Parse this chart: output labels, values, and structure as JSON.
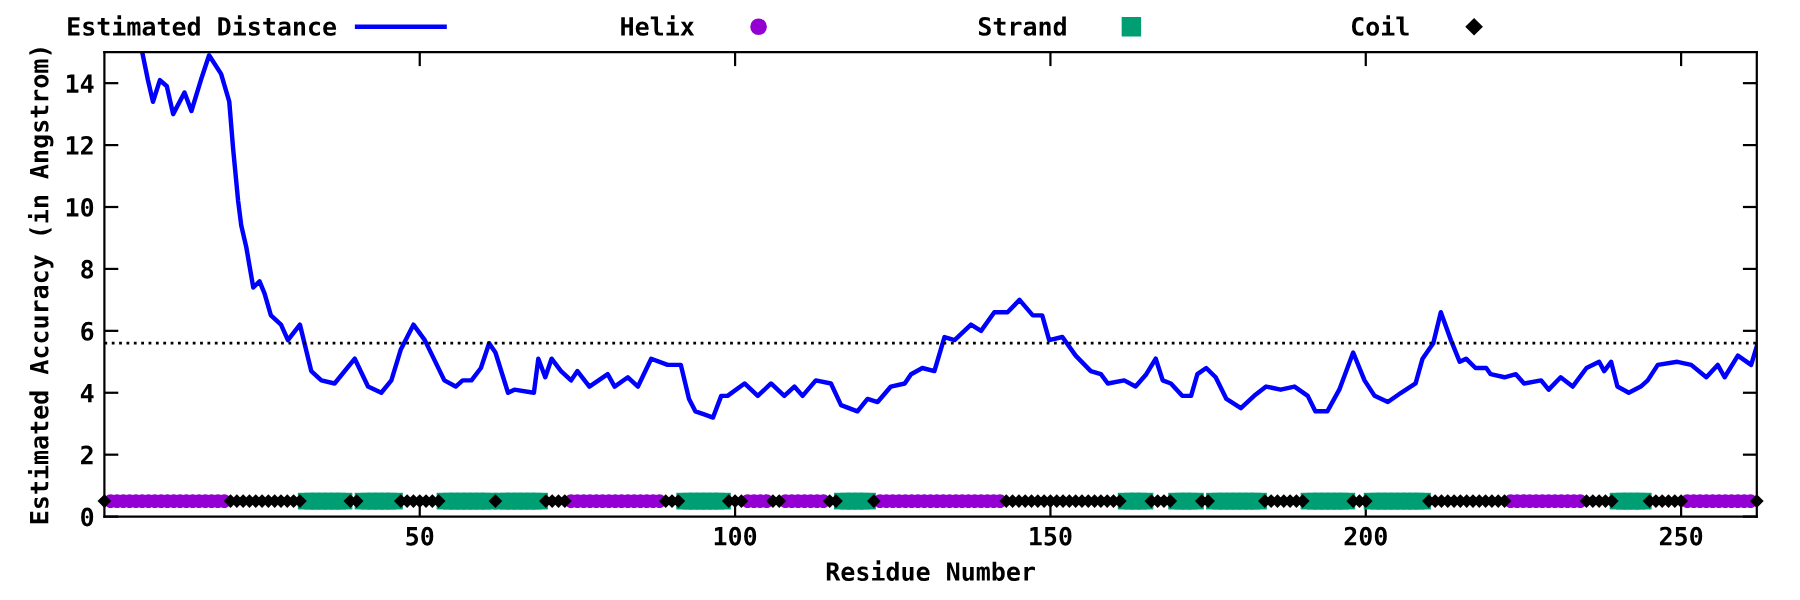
{
  "chart_data": {
    "type": "line",
    "xlabel": "Residue Number",
    "ylabel": "Estimated Accuracy (in Angstrom)",
    "xlim": [
      0,
      262
    ],
    "xticks": [
      50,
      100,
      150,
      200,
      250
    ],
    "ylim": [
      0,
      15
    ],
    "yticks": [
      0,
      2,
      4,
      6,
      8,
      10,
      12,
      14
    ],
    "grid": false,
    "legend": "top",
    "ref_lines": [
      {
        "axis": "y",
        "value": 5.6,
        "color": "#000000",
        "line_style": "dotted"
      }
    ],
    "series": [
      {
        "name": "Estimated Distance",
        "color": "#0000ff",
        "marker": "none",
        "line_style": "solid",
        "x": [
          6,
          6.9,
          7.7,
          8.8,
          9.9,
          10.9,
          12.7,
          13.8,
          15.3,
          16.6,
          18.5,
          19.8,
          20.4,
          21.2,
          21.7,
          22.5,
          23.6,
          24.6,
          25.4,
          26.4,
          28,
          29.1,
          31,
          32.8,
          34.4,
          36.5,
          39.7,
          41.8,
          43.9,
          45.5,
          47,
          49,
          50.8,
          53.9,
          55.7,
          56.8,
          58.2,
          59.7,
          61,
          62,
          64,
          65,
          68.1,
          68.8,
          69.9,
          70.9,
          72.4,
          74,
          75,
          76.9,
          79.8,
          80.9,
          83,
          84.6,
          86.7,
          89.3,
          91.4,
          92.7,
          93.7,
          95.1,
          96.5,
          97.8,
          98.8,
          101.5,
          103.6,
          105.7,
          107.8,
          109.4,
          110.7,
          112.8,
          115.2,
          116.8,
          119.4,
          121,
          122.6,
          124.7,
          126.9,
          127.9,
          129.7,
          131.6,
          133.2,
          134.8,
          137.4,
          139,
          141.1,
          143.2,
          145.1,
          147.2,
          148.7,
          149.8,
          151.9,
          154,
          156.4,
          158,
          159.1,
          161.7,
          163.5,
          165.2,
          166.7,
          167.8,
          169.1,
          170.9,
          172.3,
          173.3,
          174.7,
          176.2,
          177.9,
          180.2,
          182.3,
          184.2,
          186.5,
          188.7,
          190.8,
          192,
          193.9,
          195.8,
          198,
          199.8,
          201.4,
          203.5,
          205.6,
          207.9,
          209,
          210.7,
          211.9,
          213.5,
          214.9,
          215.9,
          217.4,
          219.1,
          219.8,
          222,
          223.8,
          225.1,
          227.8,
          229,
          230.9,
          232.8,
          235,
          237,
          237.8,
          238.9,
          239.9,
          241.7,
          243.6,
          244.7,
          246.3,
          249.4,
          251.6,
          254,
          255.8,
          256.9,
          259,
          261.1,
          262
        ],
        "values": [
          15,
          14.1,
          13.4,
          14.1,
          13.9,
          13.0,
          13.7,
          13.1,
          14.1,
          14.9,
          14.3,
          13.4,
          11.9,
          10.2,
          9.4,
          8.7,
          7.4,
          7.6,
          7.2,
          6.5,
          6.2,
          5.7,
          6.2,
          4.7,
          4.4,
          4.3,
          5.1,
          4.2,
          4.0,
          4.4,
          5.4,
          6.2,
          5.7,
          4.4,
          4.2,
          4.4,
          4.4,
          4.8,
          5.6,
          5.3,
          4.0,
          4.1,
          4.0,
          5.1,
          4.5,
          5.1,
          4.7,
          4.4,
          4.7,
          4.2,
          4.6,
          4.2,
          4.5,
          4.2,
          5.1,
          4.9,
          4.9,
          3.8,
          3.4,
          3.3,
          3.2,
          3.9,
          3.9,
          4.3,
          3.9,
          4.3,
          3.9,
          4.2,
          3.9,
          4.4,
          4.3,
          3.6,
          3.4,
          3.8,
          3.7,
          4.2,
          4.3,
          4.6,
          4.8,
          4.7,
          5.8,
          5.7,
          6.2,
          6.0,
          6.6,
          6.6,
          7.0,
          6.5,
          6.5,
          5.7,
          5.8,
          5.2,
          4.7,
          4.6,
          4.3,
          4.4,
          4.2,
          4.6,
          5.1,
          4.4,
          4.3,
          3.9,
          3.9,
          4.6,
          4.8,
          4.5,
          3.8,
          3.5,
          3.9,
          4.2,
          4.1,
          4.2,
          3.9,
          3.4,
          3.4,
          4.1,
          5.3,
          4.4,
          3.9,
          3.7,
          4.0,
          4.3,
          5.1,
          5.6,
          6.6,
          5.7,
          5.0,
          5.1,
          4.8,
          4.8,
          4.6,
          4.5,
          4.6,
          4.3,
          4.4,
          4.1,
          4.5,
          4.2,
          4.8,
          5.0,
          4.7,
          5.0,
          4.2,
          4.0,
          4.2,
          4.4,
          4.9,
          5.0,
          4.9,
          4.5,
          4.9,
          4.5,
          5.2,
          4.9,
          5.5
        ]
      },
      {
        "name": "Helix",
        "type": "scatter",
        "color": "#9400d3",
        "marker": "circle",
        "x": [
          1,
          2,
          3,
          4,
          5,
          6,
          7,
          8,
          9,
          10,
          11,
          12,
          13,
          14,
          15,
          16,
          17,
          18,
          19,
          74,
          75,
          76,
          77,
          78,
          79,
          80,
          81,
          82,
          83,
          84,
          85,
          86,
          87,
          88,
          102,
          103,
          104,
          105,
          108,
          109,
          110,
          111,
          112,
          113,
          114,
          123,
          124,
          125,
          126,
          127,
          128,
          129,
          130,
          131,
          132,
          133,
          134,
          135,
          136,
          137,
          138,
          139,
          140,
          141,
          142,
          223,
          224,
          225,
          226,
          227,
          228,
          229,
          230,
          231,
          232,
          233,
          234,
          251,
          252,
          253,
          254,
          255,
          256,
          257,
          258,
          259,
          260,
          261
        ],
        "values": [
          0.5,
          0.5,
          0.5,
          0.5,
          0.5,
          0.5,
          0.5,
          0.5,
          0.5,
          0.5,
          0.5,
          0.5,
          0.5,
          0.5,
          0.5,
          0.5,
          0.5,
          0.5,
          0.5,
          0.5,
          0.5,
          0.5,
          0.5,
          0.5,
          0.5,
          0.5,
          0.5,
          0.5,
          0.5,
          0.5,
          0.5,
          0.5,
          0.5,
          0.5,
          0.5,
          0.5,
          0.5,
          0.5,
          0.5,
          0.5,
          0.5,
          0.5,
          0.5,
          0.5,
          0.5,
          0.5,
          0.5,
          0.5,
          0.5,
          0.5,
          0.5,
          0.5,
          0.5,
          0.5,
          0.5,
          0.5,
          0.5,
          0.5,
          0.5,
          0.5,
          0.5,
          0.5,
          0.5,
          0.5,
          0.5,
          0.5,
          0.5,
          0.5,
          0.5,
          0.5,
          0.5,
          0.5,
          0.5,
          0.5,
          0.5,
          0.5,
          0.5,
          0.5,
          0.5,
          0.5,
          0.5,
          0.5,
          0.5,
          0.5,
          0.5,
          0.5,
          0.5,
          0.5
        ]
      },
      {
        "name": "Strand",
        "type": "scatter",
        "color": "#009e73",
        "marker": "square",
        "x": [
          32,
          33,
          34,
          35,
          36,
          37,
          38,
          41,
          42,
          43,
          44,
          45,
          46,
          54,
          55,
          56,
          57,
          58,
          59,
          60,
          61,
          63,
          64,
          65,
          66,
          67,
          68,
          69,
          92,
          93,
          94,
          95,
          96,
          97,
          98,
          117,
          118,
          119,
          120,
          121,
          162,
          163,
          164,
          165,
          170,
          171,
          172,
          173,
          176,
          177,
          178,
          179,
          180,
          181,
          182,
          183,
          191,
          192,
          193,
          194,
          195,
          196,
          197,
          201,
          202,
          203,
          204,
          205,
          206,
          207,
          208,
          209,
          240,
          241,
          242,
          243,
          244
        ],
        "values": [
          0.5,
          0.5,
          0.5,
          0.5,
          0.5,
          0.5,
          0.5,
          0.5,
          0.5,
          0.5,
          0.5,
          0.5,
          0.5,
          0.5,
          0.5,
          0.5,
          0.5,
          0.5,
          0.5,
          0.5,
          0.5,
          0.5,
          0.5,
          0.5,
          0.5,
          0.5,
          0.5,
          0.5,
          0.5,
          0.5,
          0.5,
          0.5,
          0.5,
          0.5,
          0.5,
          0.5,
          0.5,
          0.5,
          0.5,
          0.5,
          0.5,
          0.5,
          0.5,
          0.5,
          0.5,
          0.5,
          0.5,
          0.5,
          0.5,
          0.5,
          0.5,
          0.5,
          0.5,
          0.5,
          0.5,
          0.5,
          0.5,
          0.5,
          0.5,
          0.5,
          0.5,
          0.5,
          0.5,
          0.5,
          0.5,
          0.5,
          0.5,
          0.5,
          0.5,
          0.5,
          0.5,
          0.5,
          0.5,
          0.5,
          0.5,
          0.5,
          0.5
        ]
      },
      {
        "name": "Coil",
        "type": "scatter",
        "color": "#000000",
        "marker": "diamond",
        "x": [
          0,
          20,
          21,
          22,
          23,
          24,
          25,
          26,
          27,
          28,
          29,
          30,
          31,
          39,
          40,
          47,
          48,
          49,
          50,
          51,
          52,
          53,
          62,
          70,
          71,
          72,
          73,
          89,
          90,
          91,
          99,
          100,
          101,
          106,
          107,
          115,
          116,
          122,
          143,
          144,
          145,
          146,
          147,
          148,
          149,
          150,
          151,
          152,
          153,
          154,
          155,
          156,
          157,
          158,
          159,
          160,
          161,
          166,
          167,
          168,
          169,
          174,
          175,
          184,
          185,
          186,
          187,
          188,
          189,
          190,
          198,
          199,
          200,
          210,
          211,
          212,
          213,
          214,
          215,
          216,
          217,
          218,
          219,
          220,
          221,
          222,
          235,
          236,
          237,
          238,
          239,
          245,
          246,
          247,
          248,
          249,
          250,
          262
        ],
        "values": [
          0.5,
          0.5,
          0.5,
          0.5,
          0.5,
          0.5,
          0.5,
          0.5,
          0.5,
          0.5,
          0.5,
          0.5,
          0.5,
          0.5,
          0.5,
          0.5,
          0.5,
          0.5,
          0.5,
          0.5,
          0.5,
          0.5,
          0.5,
          0.5,
          0.5,
          0.5,
          0.5,
          0.5,
          0.5,
          0.5,
          0.5,
          0.5,
          0.5,
          0.5,
          0.5,
          0.5,
          0.5,
          0.5,
          0.5,
          0.5,
          0.5,
          0.5,
          0.5,
          0.5,
          0.5,
          0.5,
          0.5,
          0.5,
          0.5,
          0.5,
          0.5,
          0.5,
          0.5,
          0.5,
          0.5,
          0.5,
          0.5,
          0.5,
          0.5,
          0.5,
          0.5,
          0.5,
          0.5,
          0.5,
          0.5,
          0.5,
          0.5,
          0.5,
          0.5,
          0.5,
          0.5,
          0.5,
          0.5,
          0.5,
          0.5,
          0.5,
          0.5,
          0.5,
          0.5,
          0.5,
          0.5,
          0.5,
          0.5,
          0.5,
          0.5,
          0.5,
          0.5,
          0.5,
          0.5,
          0.5,
          0.5,
          0.5,
          0.5,
          0.5,
          0.5,
          0.5,
          0.5,
          0.5
        ]
      }
    ]
  }
}
